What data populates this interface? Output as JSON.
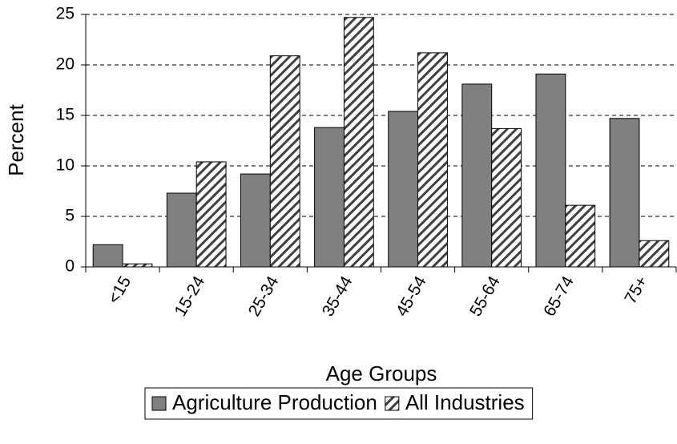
{
  "chart_data": {
    "type": "bar",
    "x_label": "Age Groups",
    "y_label": "Percent",
    "categories": [
      "<15",
      "15-24",
      "25-34",
      "35-44",
      "45-54",
      "55-64",
      "65-74",
      "75+"
    ],
    "series": [
      {
        "name": "Agriculture Production",
        "color": "#808080",
        "hatch": false,
        "values": [
          2.2,
          7.3,
          9.2,
          13.8,
          15.4,
          18.1,
          19.1,
          14.7
        ]
      },
      {
        "name": "All Industries",
        "color": "#404040",
        "hatch": true,
        "values": [
          0.3,
          10.4,
          20.9,
          24.7,
          21.2,
          13.7,
          6.1,
          2.6
        ]
      }
    ],
    "ylim": [
      0,
      25
    ],
    "yticks": [
      0,
      5,
      10,
      15,
      20,
      25
    ],
    "grid": true,
    "legend": "bottom"
  }
}
